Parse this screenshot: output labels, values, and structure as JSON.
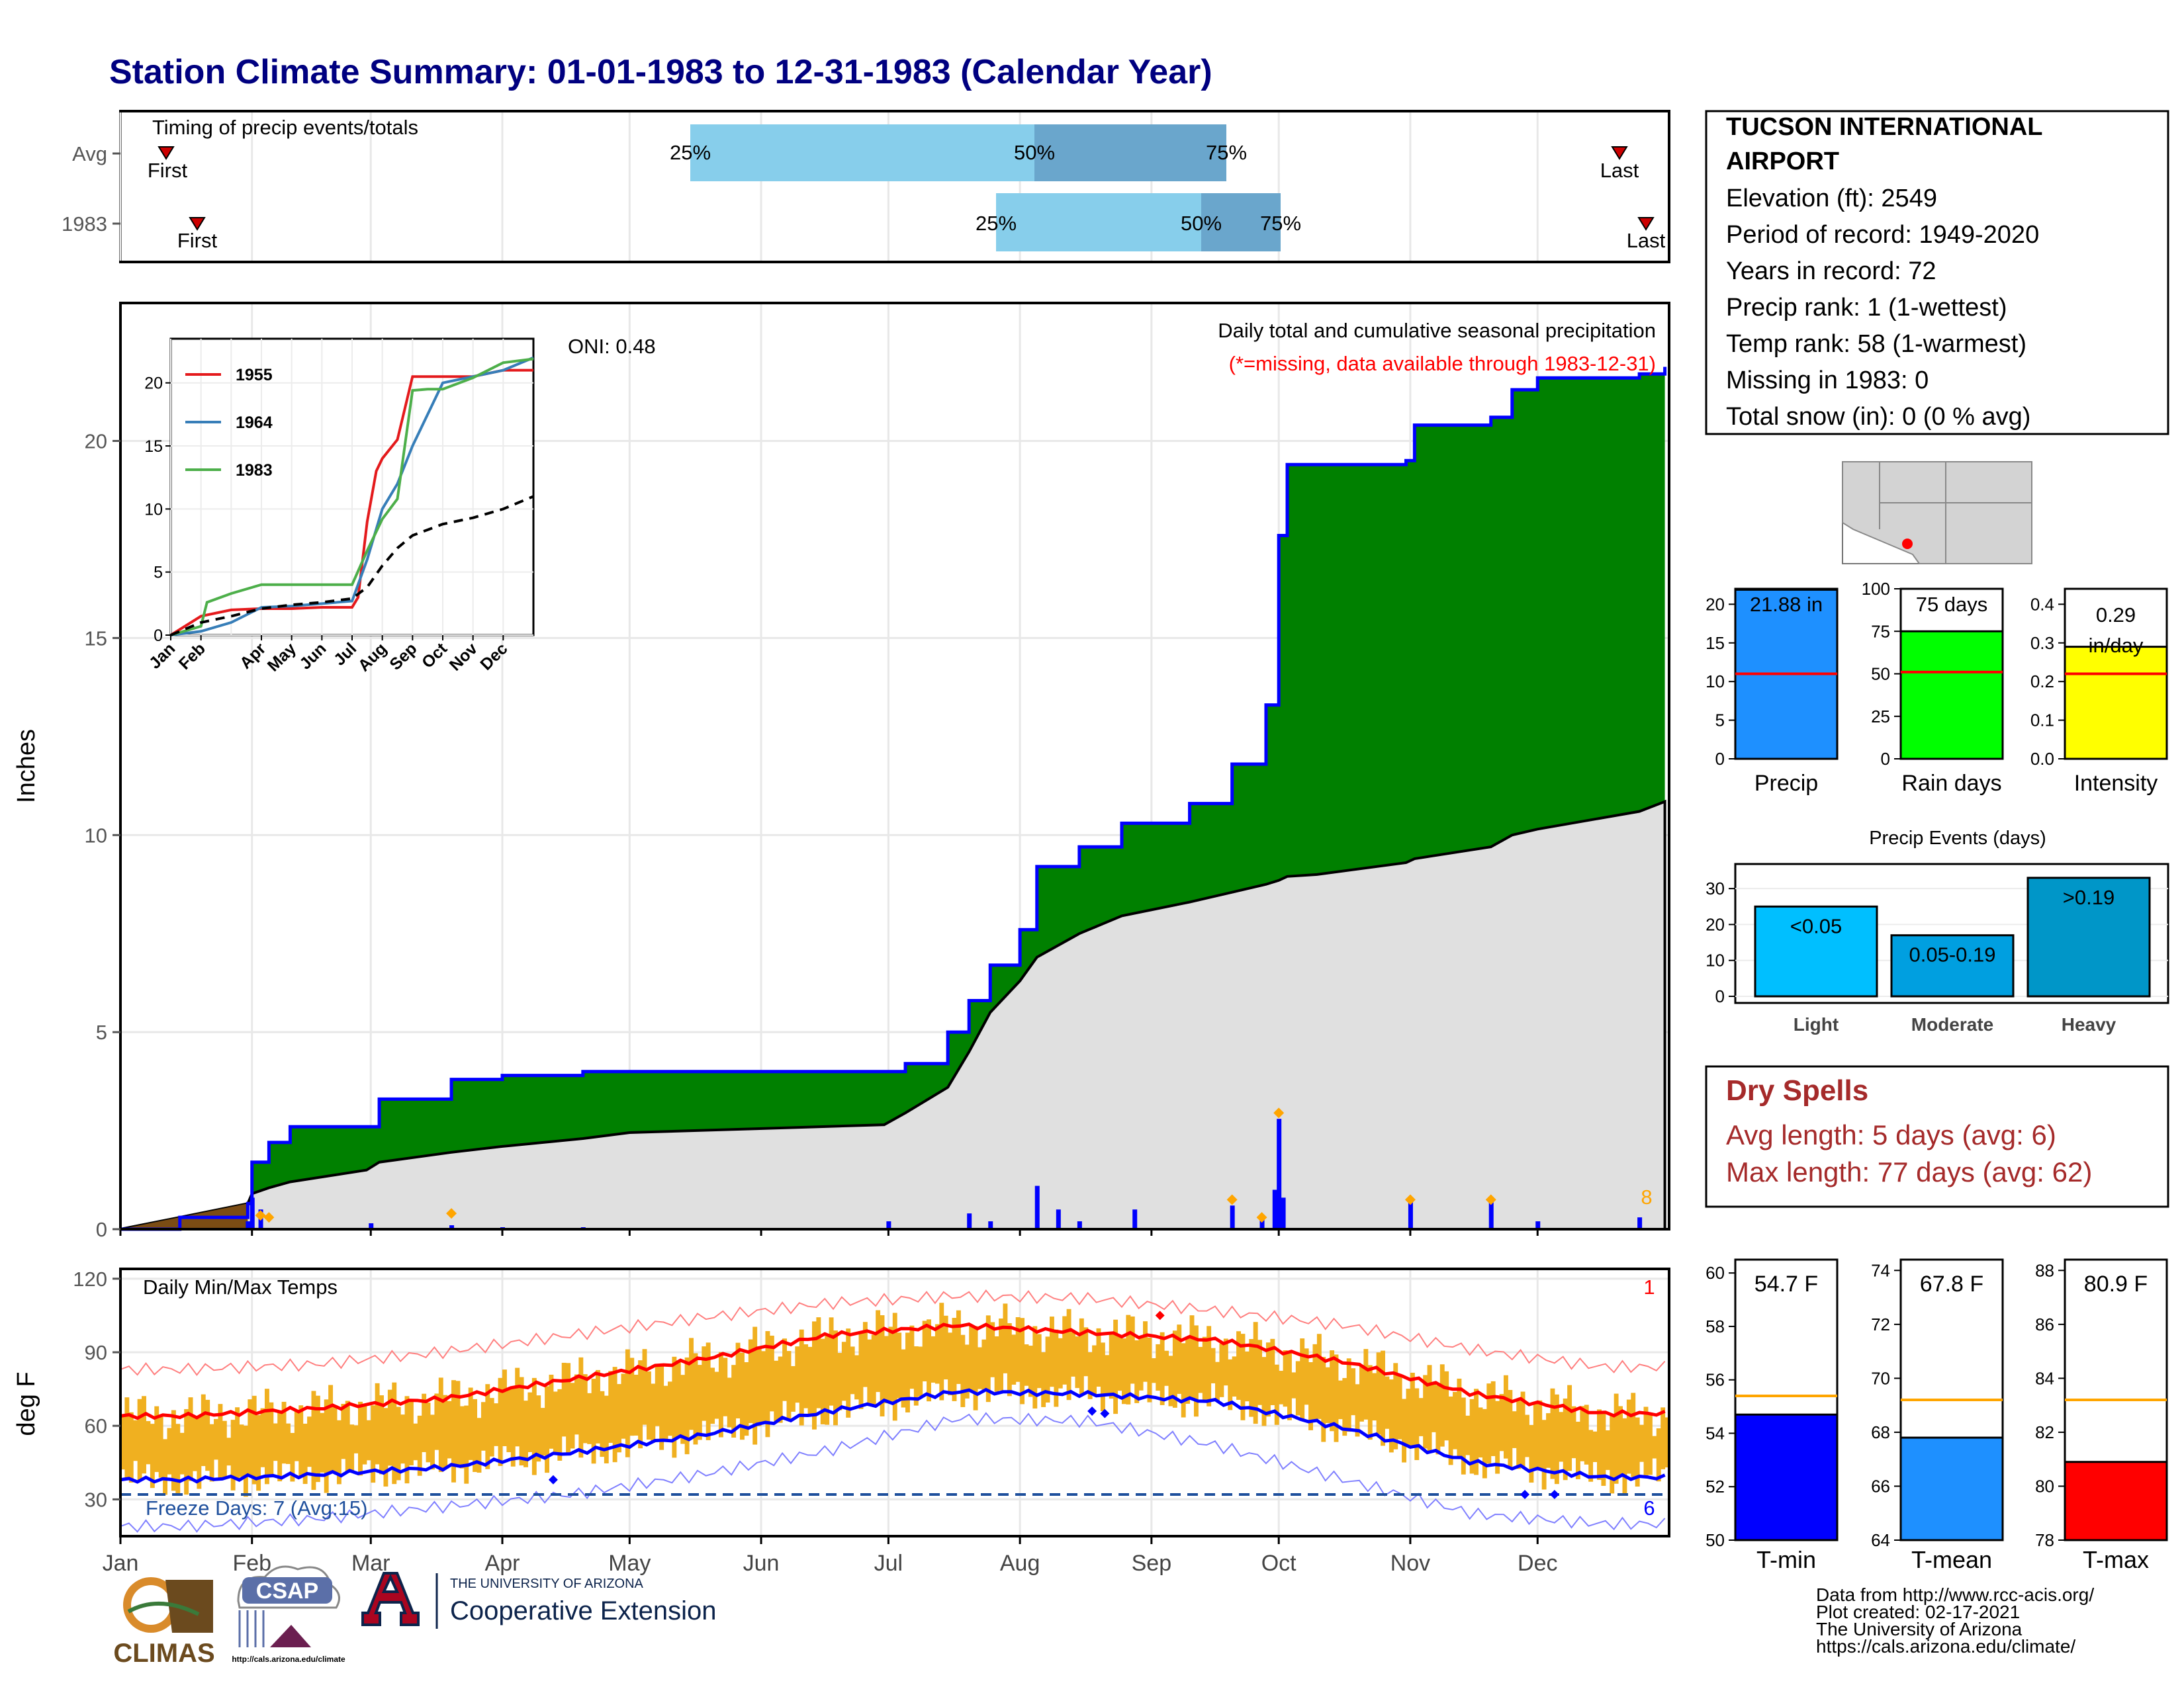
{
  "title": "Station Climate Summary: 01-01-1983 to 12-31-1983 (Calendar Year)",
  "colors": {
    "title": "#000080",
    "green_fill": "#008000",
    "gray_fill": "#e0e0e0",
    "blue_line": "#0000ff",
    "brown": "#7b4c14",
    "orange": "#ffa500",
    "temp_bar": "#f0b020",
    "tmax_line": "#ff0000",
    "tmin_line": "#0000ff",
    "light_blue": "#87ceeb",
    "mid_blue": "#6aa6cc",
    "dry_red": "#a52a2a"
  },
  "timing": {
    "title": "Timing of precip events/totals",
    "rows": [
      {
        "label": "Avg",
        "first": "First",
        "last": "Last",
        "q25": "25%",
        "q50": "50%",
        "q75": "75%"
      },
      {
        "label": "1983",
        "first": "First",
        "last": "Last",
        "q25": "25%",
        "q50": "50%",
        "q75": "75%"
      }
    ]
  },
  "station": {
    "name_line1": "TUCSON INTERNATIONAL",
    "name_line2": "AIRPORT",
    "lines": [
      "Elevation (ft): 2549",
      "Period of record: 1949-2020",
      "Years in record: 72",
      "Precip rank: 1 (1-wettest)",
      "Temp rank: 58 (1-warmest)",
      "Missing in 1983: 0",
      "Total snow (in): 0 (0 % avg)"
    ]
  },
  "precip_panel": {
    "ylabel": "Inches",
    "title": "Daily total and cumulative seasonal precipitation",
    "subtitle": "(*=missing, data available through 1983-12-31)",
    "oni": "ONI: 0.48",
    "corner_count": "8",
    "yticks": [
      "0",
      "5",
      "10",
      "15",
      "20"
    ]
  },
  "inset": {
    "legend": [
      "1955",
      "1964",
      "1983"
    ],
    "yticks": [
      "0",
      "5",
      "10",
      "15",
      "20"
    ],
    "xticks": [
      "Jan",
      "Feb",
      "Apr",
      "May",
      "Jun",
      "Jul",
      "Aug",
      "Sep",
      "Oct",
      "Nov",
      "Dec"
    ]
  },
  "temp_panel": {
    "ylabel": "deg F",
    "title": "Daily Min/Max Temps",
    "freeze": "Freeze Days: 7 (Avg:15)",
    "count_top": "1",
    "count_bottom": "6",
    "yticks": [
      "30",
      "60",
      "90",
      "120"
    ]
  },
  "months": [
    "Jan",
    "Feb",
    "Mar",
    "Apr",
    "May",
    "Jun",
    "Jul",
    "Aug",
    "Sep",
    "Oct",
    "Nov",
    "Dec"
  ],
  "summary_bars": [
    {
      "label": "Precip",
      "value_text": "21.88 in",
      "yticks": [
        "0",
        "5",
        "10",
        "15",
        "20"
      ]
    },
    {
      "label": "Rain days",
      "value_text": "75 days",
      "yticks": [
        "0",
        "25",
        "50",
        "75",
        "100"
      ]
    },
    {
      "label": "Intensity",
      "value_text": "0.29",
      "value_unit": "in/day",
      "yticks": [
        "0.0",
        "0.1",
        "0.2",
        "0.3",
        "0.4"
      ]
    }
  ],
  "events": {
    "title": "Precip Events (days)",
    "yticks": [
      "0",
      "10",
      "20",
      "30"
    ],
    "bars": [
      {
        "label": "Light",
        "inner": "<0.05"
      },
      {
        "label": "Moderate",
        "inner": "0.05-0.19"
      },
      {
        "label": "Heavy",
        "inner": ">0.19"
      }
    ]
  },
  "dry_spells": {
    "title": "Dry Spells",
    "avg": "Avg length: 5 days (avg: 6)",
    "max": "Max length: 77 days (avg: 62)"
  },
  "temp_bars": [
    {
      "label": "T-min",
      "value_text": "54.7 F",
      "yticks": [
        "50",
        "52",
        "54",
        "56",
        "58",
        "60"
      ]
    },
    {
      "label": "T-mean",
      "value_text": "67.8 F",
      "yticks": [
        "64",
        "66",
        "68",
        "70",
        "72",
        "74"
      ]
    },
    {
      "label": "T-max",
      "value_text": "80.9 F",
      "yticks": [
        "78",
        "80",
        "82",
        "84",
        "86",
        "88"
      ]
    }
  ],
  "credits": [
    "Data from http://www.rcc-acis.org/",
    "Plot created: 02-17-2021",
    "The University of Arizona",
    "https://cals.arizona.edu/climate/"
  ],
  "logos": {
    "climas": "CLIMAS",
    "csap": "CSAP",
    "csap_url": "http://cals.arizona.edu/climate",
    "ua_line1": "THE UNIVERSITY OF ARIZONA",
    "ua_line2": "Cooperative Extension"
  },
  "chart_data": [
    {
      "type": "area",
      "name": "cumulative_precip",
      "x": [
        "Jan 1",
        "Jan 15",
        "Jan 31",
        "Feb 1",
        "Feb 5",
        "Feb 10",
        "Feb 28",
        "Mar 3",
        "Mar 20",
        "Apr 1",
        "Apr 20",
        "May 1",
        "May 31",
        "Jun 30",
        "Jul 5",
        "Jul 15",
        "Jul 20",
        "Jul 25",
        "Aug 1",
        "Aug 5",
        "Aug 15",
        "Aug 25",
        "Sep 10",
        "Sep 20",
        "Sep 28",
        "Oct 1",
        "Oct 3",
        "Oct 10",
        "Oct 31",
        "Nov 2",
        "Nov 20",
        "Nov 25",
        "Dec 1",
        "Dec 25",
        "Dec 31"
      ],
      "values": [
        0,
        0.3,
        0.65,
        1.7,
        2.2,
        2.6,
        2.6,
        3.3,
        3.8,
        3.9,
        4.0,
        4.0,
        4.0,
        4.0,
        4.2,
        5.0,
        5.8,
        6.7,
        7.6,
        9.2,
        9.7,
        10.3,
        10.8,
        11.8,
        13.3,
        17.6,
        19.4,
        19.4,
        19.5,
        20.4,
        20.6,
        21.3,
        21.6,
        21.7,
        21.88
      ],
      "avg_values": [
        0,
        0.3,
        0.65,
        0.9,
        1.05,
        1.2,
        1.5,
        1.7,
        1.95,
        2.1,
        2.3,
        2.45,
        2.55,
        2.65,
        2.95,
        3.6,
        4.5,
        5.5,
        6.3,
        6.9,
        7.5,
        7.95,
        8.3,
        8.55,
        8.75,
        8.85,
        8.95,
        9.0,
        9.3,
        9.4,
        9.7,
        10.0,
        10.15,
        10.6,
        10.85
      ],
      "ylim": [
        0,
        23.5
      ]
    },
    {
      "type": "bar",
      "name": "daily_precip_events",
      "x": [
        "Jan 31",
        "Feb 1",
        "Feb 3",
        "Mar 1",
        "Mar 20",
        "Apr 1",
        "Apr 20",
        "Jul 1",
        "Jul 20",
        "Jul 25",
        "Aug 5",
        "Aug 10",
        "Aug 15",
        "Aug 28",
        "Sep 20",
        "Sep 27",
        "Sep 30",
        "Oct 1",
        "Oct 2",
        "Nov 1",
        "Nov 20",
        "Dec 1",
        "Dec 25"
      ],
      "values": [
        0.2,
        0.8,
        0.5,
        0.15,
        0.1,
        0.05,
        0.05,
        0.2,
        0.4,
        0.2,
        1.1,
        0.5,
        0.2,
        0.5,
        0.6,
        0.3,
        1.0,
        2.8,
        0.8,
        0.7,
        0.7,
        0.2,
        0.3
      ]
    },
    {
      "type": "line",
      "name": "daily_temps",
      "months": [
        "Jan",
        "Feb",
        "Mar",
        "Apr",
        "May",
        "Jun",
        "Jul",
        "Aug",
        "Sep",
        "Oct",
        "Nov",
        "Dec"
      ],
      "avg_tmax": [
        64,
        67,
        71,
        79,
        87,
        97,
        101,
        98,
        95,
        86,
        73,
        65
      ],
      "avg_tmin": [
        38,
        40,
        43,
        49,
        56,
        66,
        74,
        73,
        70,
        59,
        45,
        39
      ],
      "record_high": [
        83,
        85,
        90,
        97,
        104,
        110,
        113,
        112,
        107,
        101,
        91,
        84
      ],
      "record_low": [
        19,
        22,
        27,
        32,
        40,
        50,
        63,
        62,
        52,
        38,
        24,
        20
      ],
      "freeze_line": 32,
      "ylim": [
        15,
        120
      ]
    },
    {
      "type": "line",
      "name": "inset_cumulative",
      "series": [
        {
          "name": "1955",
          "x": [
            0,
            1,
            2,
            3,
            4,
            5,
            6,
            6.2,
            6.5,
            6.8,
            7,
            7.5,
            8,
            9,
            10,
            11,
            12
          ],
          "values": [
            0,
            1.5,
            2,
            2.1,
            2.1,
            2.2,
            2.2,
            3,
            9,
            13,
            14,
            15.5,
            20.5,
            20.5,
            20.5,
            21,
            21
          ]
        },
        {
          "name": "1964",
          "x": [
            0,
            1,
            2,
            3,
            4,
            5,
            6,
            6.5,
            7,
            7.5,
            8,
            9,
            10,
            11,
            12
          ],
          "values": [
            0,
            0.3,
            1,
            2.2,
            2.3,
            2.5,
            2.7,
            6,
            10,
            12,
            15,
            20,
            20.5,
            21,
            22
          ]
        },
        {
          "name": "1983",
          "x": [
            0,
            1,
            1.2,
            2,
            3,
            4,
            5,
            6,
            6.5,
            7,
            7.5,
            8,
            8.5,
            9,
            10,
            11,
            12
          ],
          "values": [
            0,
            0.7,
            2.6,
            3.3,
            4,
            4,
            4,
            4,
            6.7,
            9.2,
            10.8,
            19.4,
            19.5,
            19.5,
            20.4,
            21.6,
            21.9
          ]
        },
        {
          "name": "avg",
          "x": [
            0,
            1,
            2,
            3,
            4,
            5,
            6,
            6.5,
            7,
            7.5,
            8,
            9,
            10,
            11,
            12
          ],
          "values": [
            0,
            1,
            1.5,
            2.1,
            2.4,
            2.6,
            2.9,
            3.8,
            5.5,
            6.9,
            7.9,
            8.8,
            9.3,
            10,
            11
          ]
        }
      ],
      "ylim": [
        0,
        22
      ]
    },
    {
      "type": "bar",
      "name": "summary",
      "categories": [
        "Precip",
        "Rain days",
        "Intensity"
      ],
      "values": [
        21.88,
        75,
        0.29
      ],
      "averages": [
        11,
        51,
        0.22
      ],
      "ylims": [
        [
          0,
          22
        ],
        [
          0,
          100
        ],
        [
          0,
          0.44
        ]
      ]
    },
    {
      "type": "bar",
      "name": "precip_events",
      "categories": [
        "Light",
        "Moderate",
        "Heavy"
      ],
      "values": [
        25,
        17,
        33
      ],
      "ylim": [
        0,
        35
      ]
    },
    {
      "type": "bar",
      "name": "temp_summary",
      "categories": [
        "T-min",
        "T-mean",
        "T-max"
      ],
      "values": [
        54.7,
        67.8,
        80.9
      ],
      "averages": [
        55.4,
        69.2,
        83.2
      ],
      "ylims": [
        [
          50,
          60.5
        ],
        [
          64,
          74.4
        ],
        [
          78,
          88.4
        ]
      ]
    }
  ]
}
